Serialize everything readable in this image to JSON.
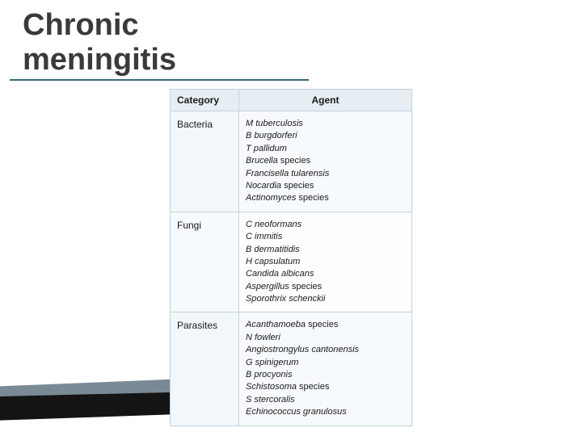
{
  "title": "Chronic meningitis",
  "headers": {
    "category": "Category",
    "agent": "Agent"
  },
  "rows": [
    {
      "category": "Bacteria",
      "agents": [
        {
          "name": "M tuberculosis",
          "italic": true
        },
        {
          "name": "B burgdorferi",
          "italic": true
        },
        {
          "name": "T pallidum",
          "italic": true
        },
        {
          "name": "Brucella",
          "italic": true,
          "suffix": " species"
        },
        {
          "name": "Francisella tularensis",
          "italic": true
        },
        {
          "name": "Nocardia",
          "italic": true,
          "suffix": " species"
        },
        {
          "name": "Actinomyces",
          "italic": true,
          "suffix": " species"
        }
      ]
    },
    {
      "category": "Fungi",
      "agents": [
        {
          "name": "C neoformans",
          "italic": true
        },
        {
          "name": "C immitis",
          "italic": true
        },
        {
          "name": "B dermatitidis",
          "italic": true
        },
        {
          "name": "H capsulatum",
          "italic": true
        },
        {
          "name": "Candida albicans",
          "italic": true
        },
        {
          "name": "Aspergillus",
          "italic": true,
          "suffix": " species"
        },
        {
          "name": "Sporothrix schenckii",
          "italic": true
        }
      ]
    },
    {
      "category": "Parasites",
      "agents": [
        {
          "name": "Acanthamoeba",
          "italic": true,
          "suffix": " species"
        },
        {
          "name": "N fowleri",
          "italic": true
        },
        {
          "name": "Angiostrongylus cantonensis",
          "italic": true
        },
        {
          "name": "G spinigerum",
          "italic": true
        },
        {
          "name": "B procyonis",
          "italic": true
        },
        {
          "name": "Schistosoma",
          "italic": true,
          "suffix": " species"
        },
        {
          "name": "S stercoralis",
          "italic": true
        },
        {
          "name": "Echinococcus granulosus",
          "italic": true
        }
      ]
    }
  ],
  "colors": {
    "title_underline": "#3a6a80",
    "header_bg": "#e6eef3",
    "cell_bg": "#f7fafc",
    "border": "#c5d2dc"
  },
  "swoosh": {
    "top_color": "#7a8a95",
    "bottom_color": "#141414"
  }
}
